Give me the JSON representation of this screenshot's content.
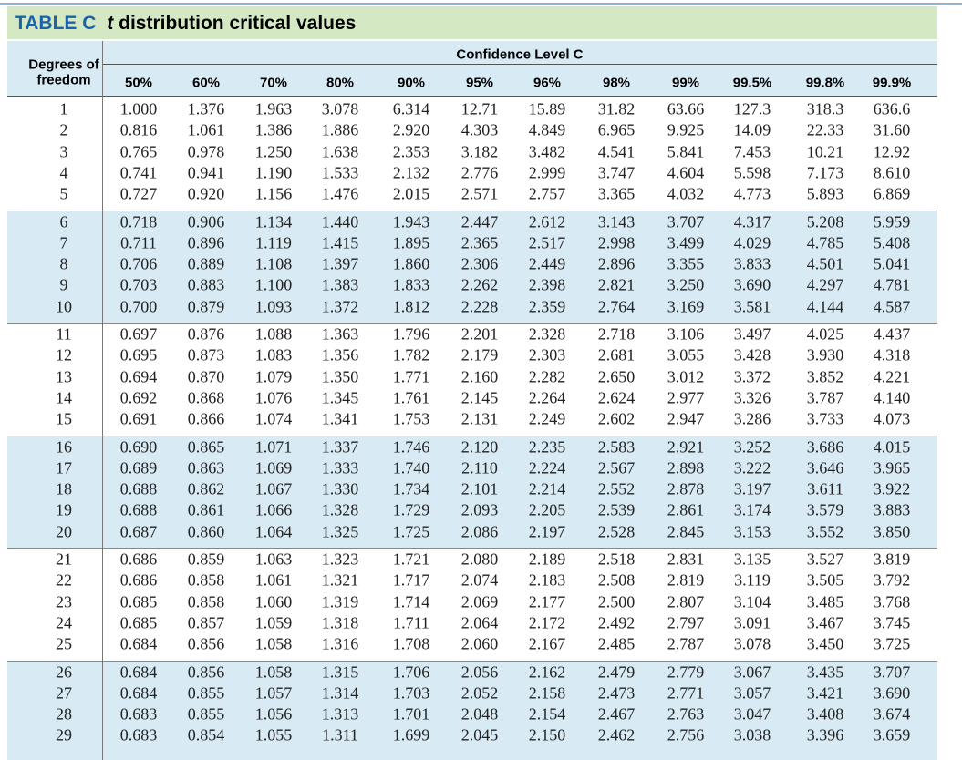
{
  "title": {
    "label": "TABLE C",
    "variable": "t",
    "text": "distribution critical values"
  },
  "table": {
    "stub_header": [
      "Degrees of",
      "freedom"
    ],
    "spanner": "Confidence Level C",
    "columns": [
      "50%",
      "60%",
      "70%",
      "80%",
      "90%",
      "95%",
      "96%",
      "98%",
      "99%",
      "99.5%",
      "99.8%",
      "99.9%"
    ],
    "rows": [
      {
        "df": "1",
        "values": [
          "1.000",
          "1.376",
          "1.963",
          "3.078",
          "6.314",
          "12.71",
          "15.89",
          "31.82",
          "63.66",
          "127.3",
          "318.3",
          "636.6"
        ]
      },
      {
        "df": "2",
        "values": [
          "0.816",
          "1.061",
          "1.386",
          "1.886",
          "2.920",
          "4.303",
          "4.849",
          "6.965",
          "9.925",
          "14.09",
          "22.33",
          "31.60"
        ]
      },
      {
        "df": "3",
        "values": [
          "0.765",
          "0.978",
          "1.250",
          "1.638",
          "2.353",
          "3.182",
          "3.482",
          "4.541",
          "5.841",
          "7.453",
          "10.21",
          "12.92"
        ]
      },
      {
        "df": "4",
        "values": [
          "0.741",
          "0.941",
          "1.190",
          "1.533",
          "2.132",
          "2.776",
          "2.999",
          "3.747",
          "4.604",
          "5.598",
          "7.173",
          "8.610"
        ]
      },
      {
        "df": "5",
        "values": [
          "0.727",
          "0.920",
          "1.156",
          "1.476",
          "2.015",
          "2.571",
          "2.757",
          "3.365",
          "4.032",
          "4.773",
          "5.893",
          "6.869"
        ]
      },
      {
        "df": "6",
        "values": [
          "0.718",
          "0.906",
          "1.134",
          "1.440",
          "1.943",
          "2.447",
          "2.612",
          "3.143",
          "3.707",
          "4.317",
          "5.208",
          "5.959"
        ]
      },
      {
        "df": "7",
        "values": [
          "0.711",
          "0.896",
          "1.119",
          "1.415",
          "1.895",
          "2.365",
          "2.517",
          "2.998",
          "3.499",
          "4.029",
          "4.785",
          "5.408"
        ]
      },
      {
        "df": "8",
        "values": [
          "0.706",
          "0.889",
          "1.108",
          "1.397",
          "1.860",
          "2.306",
          "2.449",
          "2.896",
          "3.355",
          "3.833",
          "4.501",
          "5.041"
        ]
      },
      {
        "df": "9",
        "values": [
          "0.703",
          "0.883",
          "1.100",
          "1.383",
          "1.833",
          "2.262",
          "2.398",
          "2.821",
          "3.250",
          "3.690",
          "4.297",
          "4.781"
        ]
      },
      {
        "df": "10",
        "values": [
          "0.700",
          "0.879",
          "1.093",
          "1.372",
          "1.812",
          "2.228",
          "2.359",
          "2.764",
          "3.169",
          "3.581",
          "4.144",
          "4.587"
        ]
      },
      {
        "df": "11",
        "values": [
          "0.697",
          "0.876",
          "1.088",
          "1.363",
          "1.796",
          "2.201",
          "2.328",
          "2.718",
          "3.106",
          "3.497",
          "4.025",
          "4.437"
        ]
      },
      {
        "df": "12",
        "values": [
          "0.695",
          "0.873",
          "1.083",
          "1.356",
          "1.782",
          "2.179",
          "2.303",
          "2.681",
          "3.055",
          "3.428",
          "3.930",
          "4.318"
        ]
      },
      {
        "df": "13",
        "values": [
          "0.694",
          "0.870",
          "1.079",
          "1.350",
          "1.771",
          "2.160",
          "2.282",
          "2.650",
          "3.012",
          "3.372",
          "3.852",
          "4.221"
        ]
      },
      {
        "df": "14",
        "values": [
          "0.692",
          "0.868",
          "1.076",
          "1.345",
          "1.761",
          "2.145",
          "2.264",
          "2.624",
          "2.977",
          "3.326",
          "3.787",
          "4.140"
        ]
      },
      {
        "df": "15",
        "values": [
          "0.691",
          "0.866",
          "1.074",
          "1.341",
          "1.753",
          "2.131",
          "2.249",
          "2.602",
          "2.947",
          "3.286",
          "3.733",
          "4.073"
        ]
      },
      {
        "df": "16",
        "values": [
          "0.690",
          "0.865",
          "1.071",
          "1.337",
          "1.746",
          "2.120",
          "2.235",
          "2.583",
          "2.921",
          "3.252",
          "3.686",
          "4.015"
        ]
      },
      {
        "df": "17",
        "values": [
          "0.689",
          "0.863",
          "1.069",
          "1.333",
          "1.740",
          "2.110",
          "2.224",
          "2.567",
          "2.898",
          "3.222",
          "3.646",
          "3.965"
        ]
      },
      {
        "df": "18",
        "values": [
          "0.688",
          "0.862",
          "1.067",
          "1.330",
          "1.734",
          "2.101",
          "2.214",
          "2.552",
          "2.878",
          "3.197",
          "3.611",
          "3.922"
        ]
      },
      {
        "df": "19",
        "values": [
          "0.688",
          "0.861",
          "1.066",
          "1.328",
          "1.729",
          "2.093",
          "2.205",
          "2.539",
          "2.861",
          "3.174",
          "3.579",
          "3.883"
        ]
      },
      {
        "df": "20",
        "values": [
          "0.687",
          "0.860",
          "1.064",
          "1.325",
          "1.725",
          "2.086",
          "2.197",
          "2.528",
          "2.845",
          "3.153",
          "3.552",
          "3.850"
        ]
      },
      {
        "df": "21",
        "values": [
          "0.686",
          "0.859",
          "1.063",
          "1.323",
          "1.721",
          "2.080",
          "2.189",
          "2.518",
          "2.831",
          "3.135",
          "3.527",
          "3.819"
        ]
      },
      {
        "df": "22",
        "values": [
          "0.686",
          "0.858",
          "1.061",
          "1.321",
          "1.717",
          "2.074",
          "2.183",
          "2.508",
          "2.819",
          "3.119",
          "3.505",
          "3.792"
        ]
      },
      {
        "df": "23",
        "values": [
          "0.685",
          "0.858",
          "1.060",
          "1.319",
          "1.714",
          "2.069",
          "2.177",
          "2.500",
          "2.807",
          "3.104",
          "3.485",
          "3.768"
        ]
      },
      {
        "df": "24",
        "values": [
          "0.685",
          "0.857",
          "1.059",
          "1.318",
          "1.711",
          "2.064",
          "2.172",
          "2.492",
          "2.797",
          "3.091",
          "3.467",
          "3.745"
        ]
      },
      {
        "df": "25",
        "values": [
          "0.684",
          "0.856",
          "1.058",
          "1.316",
          "1.708",
          "2.060",
          "2.167",
          "2.485",
          "2.787",
          "3.078",
          "3.450",
          "3.725"
        ]
      },
      {
        "df": "26",
        "values": [
          "0.684",
          "0.856",
          "1.058",
          "1.315",
          "1.706",
          "2.056",
          "2.162",
          "2.479",
          "2.779",
          "3.067",
          "3.435",
          "3.707"
        ]
      },
      {
        "df": "27",
        "values": [
          "0.684",
          "0.855",
          "1.057",
          "1.314",
          "1.703",
          "2.052",
          "2.158",
          "2.473",
          "2.771",
          "3.057",
          "3.421",
          "3.690"
        ]
      },
      {
        "df": "28",
        "values": [
          "0.683",
          "0.855",
          "1.056",
          "1.313",
          "1.701",
          "2.048",
          "2.154",
          "2.467",
          "2.763",
          "3.047",
          "3.408",
          "3.674"
        ]
      },
      {
        "df": "29",
        "values": [
          "0.683",
          "0.854",
          "1.055",
          "1.311",
          "1.699",
          "2.045",
          "2.150",
          "2.462",
          "2.756",
          "3.038",
          "3.396",
          "3.659"
        ]
      }
    ]
  }
}
